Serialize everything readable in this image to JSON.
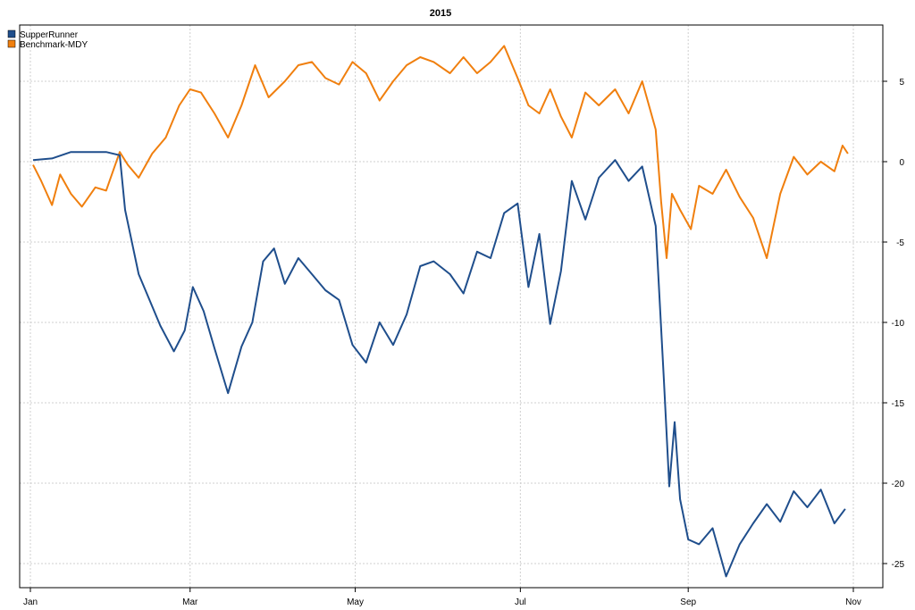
{
  "chart_data": {
    "type": "line",
    "title": "2015",
    "xlabel": "",
    "ylabel": "",
    "x_ticks": [
      "Jan",
      "Mar",
      "May",
      "Jul",
      "Sep",
      "Nov"
    ],
    "y_ticks": [
      5,
      0,
      -5,
      -10,
      -15,
      -20,
      -25
    ],
    "ylim": [
      -26.5,
      8.5
    ],
    "grid": true,
    "legend": "top-left",
    "series": [
      {
        "name": "SupperRunner",
        "color": "#1f4e8c",
        "x": [
          "2015-01-02",
          "2015-01-09",
          "2015-01-16",
          "2015-01-23",
          "2015-01-29",
          "2015-02-03",
          "2015-02-05",
          "2015-02-10",
          "2015-02-13",
          "2015-02-18",
          "2015-02-23",
          "2015-02-27",
          "2015-03-02",
          "2015-03-06",
          "2015-03-10",
          "2015-03-15",
          "2015-03-20",
          "2015-03-24",
          "2015-03-28",
          "2015-04-01",
          "2015-04-05",
          "2015-04-10",
          "2015-04-15",
          "2015-04-20",
          "2015-04-25",
          "2015-04-30",
          "2015-05-05",
          "2015-05-10",
          "2015-05-15",
          "2015-05-20",
          "2015-05-25",
          "2015-05-30",
          "2015-06-05",
          "2015-06-10",
          "2015-06-15",
          "2015-06-20",
          "2015-06-25",
          "2015-06-30",
          "2015-07-04",
          "2015-07-08",
          "2015-07-12",
          "2015-07-16",
          "2015-07-20",
          "2015-07-25",
          "2015-07-30",
          "2015-08-05",
          "2015-08-10",
          "2015-08-15",
          "2015-08-20",
          "2015-08-23",
          "2015-08-25",
          "2015-08-27",
          "2015-08-29",
          "2015-09-01",
          "2015-09-05",
          "2015-09-10",
          "2015-09-15",
          "2015-09-20",
          "2015-09-25",
          "2015-09-30",
          "2015-10-05",
          "2015-10-10",
          "2015-10-15",
          "2015-10-20",
          "2015-10-25",
          "2015-10-29"
        ],
        "values": [
          0.1,
          0.2,
          0.6,
          0.6,
          0.6,
          0.4,
          -3.0,
          -7.0,
          -8.2,
          -10.2,
          -11.8,
          -10.5,
          -7.8,
          -9.3,
          -11.6,
          -14.4,
          -11.5,
          -10.0,
          -6.2,
          -5.4,
          -7.6,
          -6.0,
          -7.0,
          -8.0,
          -8.6,
          -11.4,
          -12.5,
          -10.0,
          -11.4,
          -9.5,
          -6.5,
          -6.2,
          -7.0,
          -8.2,
          -5.6,
          -6.0,
          -3.2,
          -2.6,
          -7.8,
          -4.5,
          -10.1,
          -6.8,
          -1.2,
          -3.6,
          -1.0,
          0.1,
          -1.2,
          -0.3,
          -4.0,
          -13.5,
          -20.2,
          -16.2,
          -21.0,
          -23.5,
          -23.8,
          -22.8,
          -25.8,
          -23.8,
          -22.5,
          -21.3,
          -22.4,
          -20.5,
          -21.5,
          -20.4,
          -22.5,
          -21.6
        ]
      },
      {
        "name": "Benchmark-MDY",
        "color": "#f07f0e",
        "x": [
          "2015-01-02",
          "2015-01-05",
          "2015-01-09",
          "2015-01-12",
          "2015-01-16",
          "2015-01-20",
          "2015-01-25",
          "2015-01-29",
          "2015-02-03",
          "2015-02-06",
          "2015-02-10",
          "2015-02-15",
          "2015-02-20",
          "2015-02-25",
          "2015-03-01",
          "2015-03-05",
          "2015-03-10",
          "2015-03-15",
          "2015-03-20",
          "2015-03-25",
          "2015-03-30",
          "2015-04-05",
          "2015-04-10",
          "2015-04-15",
          "2015-04-20",
          "2015-04-25",
          "2015-04-30",
          "2015-05-05",
          "2015-05-10",
          "2015-05-15",
          "2015-05-20",
          "2015-05-25",
          "2015-05-30",
          "2015-06-05",
          "2015-06-10",
          "2015-06-15",
          "2015-06-20",
          "2015-06-25",
          "2015-06-30",
          "2015-07-04",
          "2015-07-08",
          "2015-07-12",
          "2015-07-16",
          "2015-07-20",
          "2015-07-25",
          "2015-07-30",
          "2015-08-05",
          "2015-08-10",
          "2015-08-15",
          "2015-08-20",
          "2015-08-22",
          "2015-08-24",
          "2015-08-26",
          "2015-08-29",
          "2015-09-02",
          "2015-09-05",
          "2015-09-10",
          "2015-09-15",
          "2015-09-20",
          "2015-09-25",
          "2015-09-30",
          "2015-10-05",
          "2015-10-10",
          "2015-10-15",
          "2015-10-20",
          "2015-10-25",
          "2015-10-28",
          "2015-10-30"
        ],
        "values": [
          -0.2,
          -1.2,
          -2.7,
          -0.8,
          -2.0,
          -2.8,
          -1.6,
          -1.8,
          0.6,
          -0.2,
          -1.0,
          0.5,
          1.5,
          3.5,
          4.5,
          4.3,
          3.0,
          1.5,
          3.5,
          6.0,
          4.0,
          5.0,
          6.0,
          6.2,
          5.2,
          4.8,
          6.2,
          5.5,
          3.8,
          5.0,
          6.0,
          6.5,
          6.2,
          5.5,
          6.5,
          5.5,
          6.2,
          7.2,
          5.2,
          3.5,
          3.0,
          4.5,
          2.8,
          1.5,
          4.3,
          3.5,
          4.5,
          3.0,
          5.0,
          2.0,
          -2.5,
          -6.0,
          -2.0,
          -3.0,
          -4.2,
          -1.5,
          -2.0,
          -0.5,
          -2.2,
          -3.5,
          -6.0,
          -2.0,
          0.3,
          -0.8,
          0.0,
          -0.6,
          1.0,
          0.5
        ]
      }
    ]
  }
}
